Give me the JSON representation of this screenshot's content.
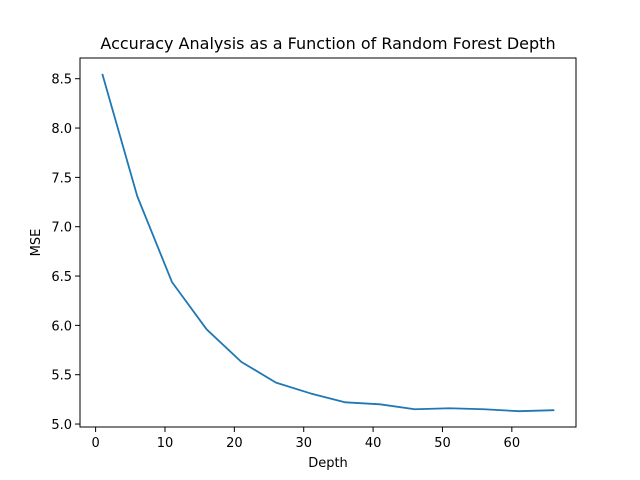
{
  "chart_data": {
    "type": "line",
    "title": "Accuracy Analysis as a Function of Random Forest Depth",
    "xlabel": "Depth",
    "ylabel": "MSE",
    "xlim": [
      -2.25,
      69.25
    ],
    "ylim": [
      4.97,
      8.71
    ],
    "xticks": [
      0,
      10,
      20,
      30,
      40,
      50,
      60
    ],
    "yticks": [
      5.0,
      5.5,
      6.0,
      6.5,
      7.0,
      7.5,
      8.0,
      8.5
    ],
    "grid": false,
    "legend": "none",
    "series": [
      {
        "color": "#1f77b4",
        "x": [
          1,
          6,
          11,
          16,
          21,
          26,
          31,
          36,
          41,
          46,
          51,
          56,
          61,
          66
        ],
        "y": [
          8.54,
          7.31,
          6.44,
          5.96,
          5.63,
          5.42,
          5.31,
          5.22,
          5.2,
          5.15,
          5.16,
          5.15,
          5.13,
          5.14
        ]
      }
    ]
  }
}
